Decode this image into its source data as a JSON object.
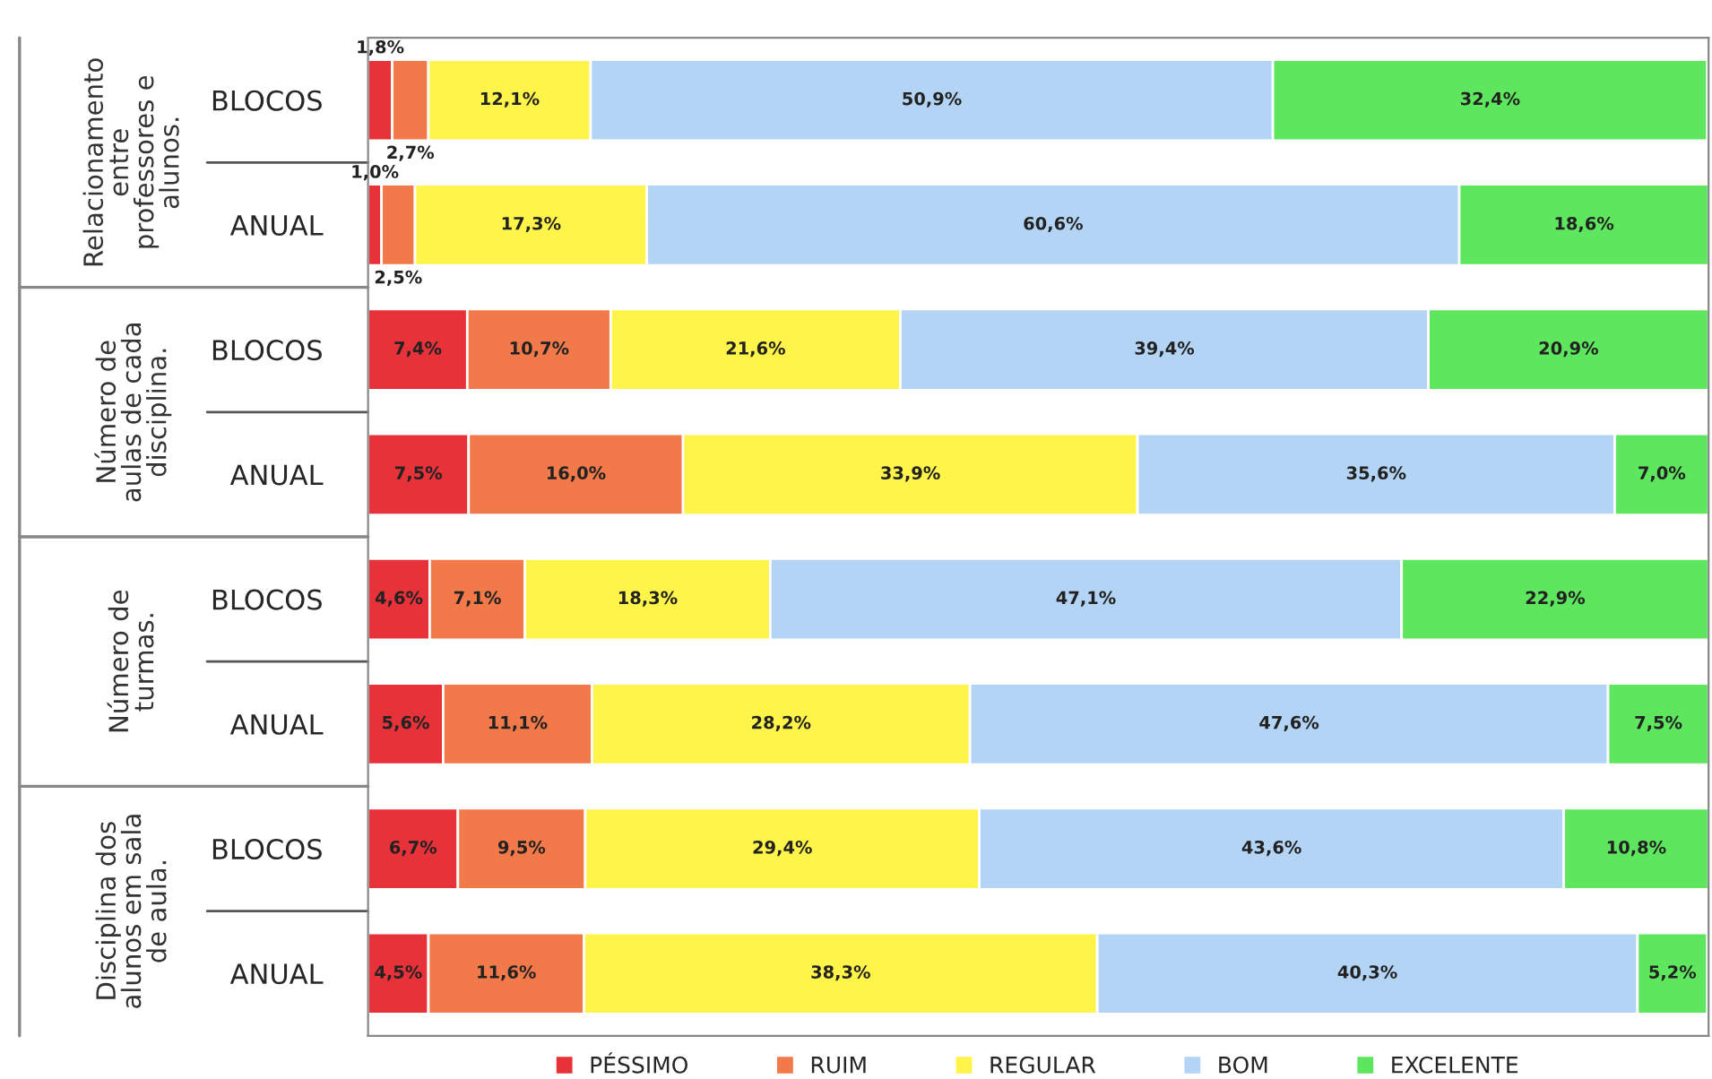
{
  "chart_data": {
    "type": "bar",
    "orientation": "horizontal",
    "stacked": true,
    "categories": [
      "BLOCOS",
      "ANUAL",
      "BLOCOS",
      "ANUAL",
      "BLOCOS",
      "ANUAL",
      "BLOCOS",
      "ANUAL"
    ],
    "annotations": [
      "Relacionamento\nentre\nprofessores e\nalunos.",
      "Número de\naulas de cada\ndisciplina.",
      "Número de\nturmas.",
      "Disciplina dos\nalunos em sala\nde aula."
    ],
    "series": [
      {
        "name": "PÉSSIMO",
        "color": "#e8323a",
        "values": [
          1.8,
          1.0,
          7.4,
          7.5,
          4.6,
          5.6,
          6.7,
          4.5
        ],
        "value_labels": [
          "1,8%",
          "1,0%",
          "7,4%",
          "7,5%",
          "4,6%",
          "5,6%",
          "6,7%",
          "4,5%"
        ]
      },
      {
        "name": "RUIM",
        "color": "#f27a4a",
        "values": [
          2.7,
          2.5,
          10.7,
          16.0,
          7.1,
          11.1,
          9.5,
          11.6
        ],
        "value_labels": [
          "2,7%",
          "2,5%",
          "10,7%",
          "16,0%",
          "7,1%",
          "11,1%",
          "9,5%",
          "11,6%"
        ]
      },
      {
        "name": "REGULAR",
        "color": "#fff44a",
        "values": [
          12.1,
          17.3,
          21.6,
          33.9,
          18.3,
          28.2,
          29.4,
          38.3
        ],
        "value_labels": [
          "12,1%",
          "17,3%",
          "21,6%",
          "33,9%",
          "18,3%",
          "28,2%",
          "29,4%",
          "38,3%"
        ]
      },
      {
        "name": "BOM",
        "color": "#b3d4f5",
        "values": [
          50.9,
          60.6,
          39.4,
          35.6,
          47.1,
          47.6,
          43.6,
          40.3
        ],
        "value_labels": [
          "50,9%",
          "60,6%",
          "39,4%",
          "35,6%",
          "47,1%",
          "47,6%",
          "43,6%",
          "40,3%"
        ]
      },
      {
        "name": "EXCELENTE",
        "color": "#5ee65e",
        "values": [
          32.4,
          18.6,
          20.9,
          7.0,
          22.9,
          7.5,
          10.8,
          5.2
        ],
        "value_labels": [
          "32,4%",
          "18,6%",
          "20,9%",
          "7,0%",
          "22,9%",
          "7,5%",
          "10,8%",
          "5,2%"
        ]
      }
    ],
    "xlim": [
      0,
      100
    ],
    "tick_labels": "y",
    "legend": "bottom"
  }
}
